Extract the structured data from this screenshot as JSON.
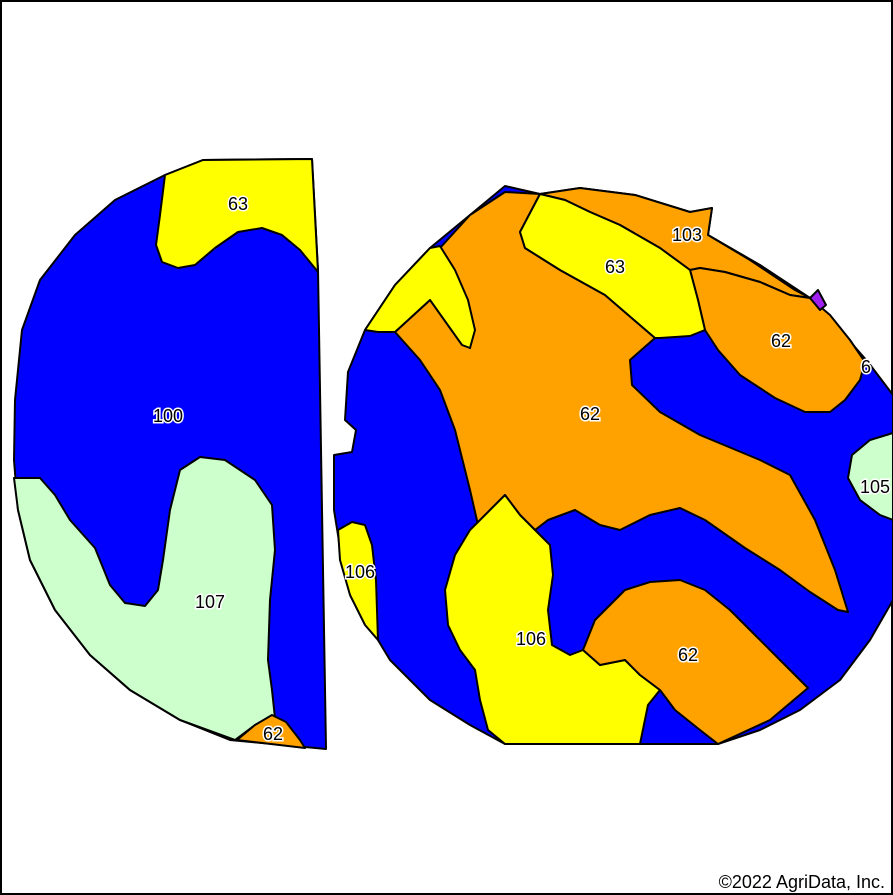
{
  "colors": {
    "blue": "#0000ff",
    "yellow": "#ffff00",
    "orange": "#ffa200",
    "lightgreen": "#ccffcc",
    "purple": "#a020f0",
    "border": "#000000",
    "background": "#ffffff"
  },
  "labels": {
    "l63a": "63",
    "l100": "100",
    "l107": "107",
    "l62a": "62",
    "l103": "103",
    "l63b": "63",
    "l62b": "62",
    "l6": "6",
    "l62c": "62",
    "l105": "105",
    "l106a": "106",
    "l106b": "106",
    "l62d": "62"
  },
  "copyright": "©2022 AgriData, Inc."
}
